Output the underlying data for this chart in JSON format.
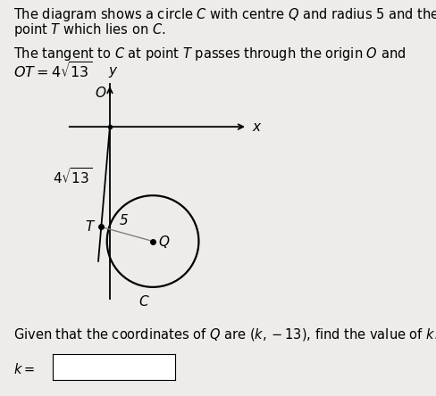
{
  "background_color": "#edecea",
  "text_line1": "The diagram shows a circle $C$ with centre $Q$ and radius 5 and the",
  "text_line2": "point $T$ which lies on $C$.",
  "text_line3": "The tangent to $C$ at point $T$ passes through the origin $O$ and",
  "text_line4": "$OT = 4\\sqrt{13}$",
  "question_text": "Given that the coordinates of $Q$ are $(k, -13)$, find the value of $k$.",
  "answer_label": "$k=$",
  "label_OT": "$4\\sqrt{13}$",
  "label_radius": "5",
  "label_C": "$C$",
  "label_Q": "$Q$",
  "label_T": "$T$",
  "label_O": "$O$",
  "label_x": "$x$",
  "label_y": "$y$",
  "font_size_text": 10.5,
  "font_size_diagram": 11
}
